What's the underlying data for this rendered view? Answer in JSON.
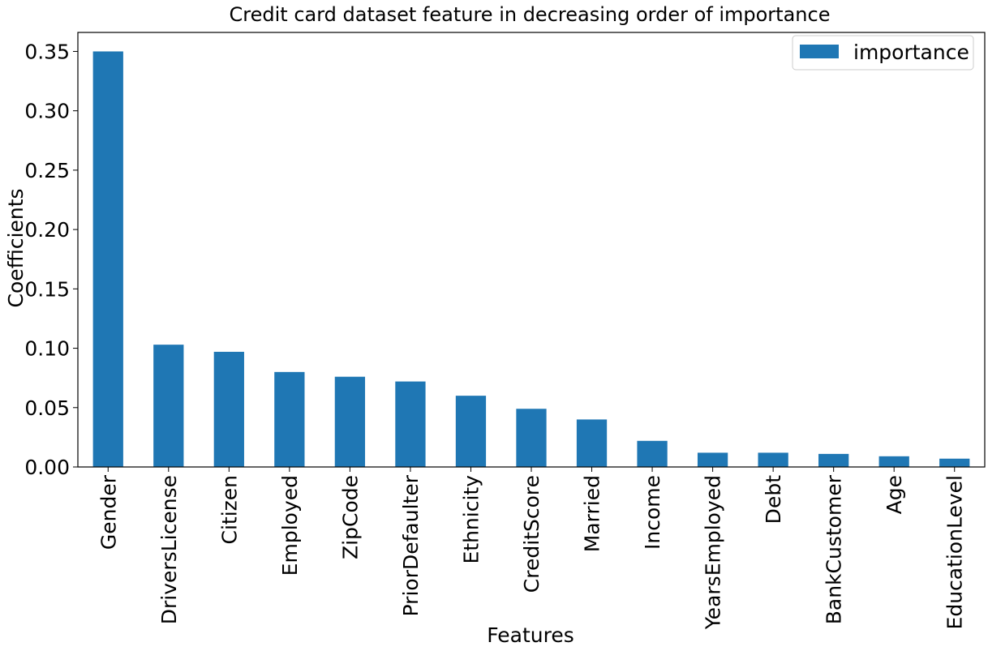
{
  "chart_data": {
    "type": "bar",
    "title": "Credit card dataset feature in decreasing order of importance",
    "xlabel": "Features",
    "ylabel": "Coefficients",
    "categories": [
      "Gender",
      "DriversLicense",
      "Citizen",
      "Employed",
      "ZipCode",
      "PriorDefaulter",
      "Ethnicity",
      "CreditScore",
      "Married",
      "Income",
      "YearsEmployed",
      "Debt",
      "BankCustomer",
      "Age",
      "EducationLevel"
    ],
    "series": [
      {
        "name": "importance",
        "values": [
          0.35,
          0.103,
          0.097,
          0.08,
          0.076,
          0.072,
          0.06,
          0.049,
          0.04,
          0.022,
          0.012,
          0.012,
          0.011,
          0.009,
          0.007
        ]
      }
    ],
    "ylim": [
      0,
      0.366
    ],
    "yticks": [
      "0.00",
      "0.05",
      "0.10",
      "0.15",
      "0.20",
      "0.25",
      "0.30",
      "0.35"
    ],
    "ytick_values": [
      0,
      0.05,
      0.1,
      0.15,
      0.2,
      0.25,
      0.3,
      0.35
    ],
    "grid": false,
    "legend_position": "top-right",
    "colors": {
      "bar": "#1f77b4"
    }
  }
}
